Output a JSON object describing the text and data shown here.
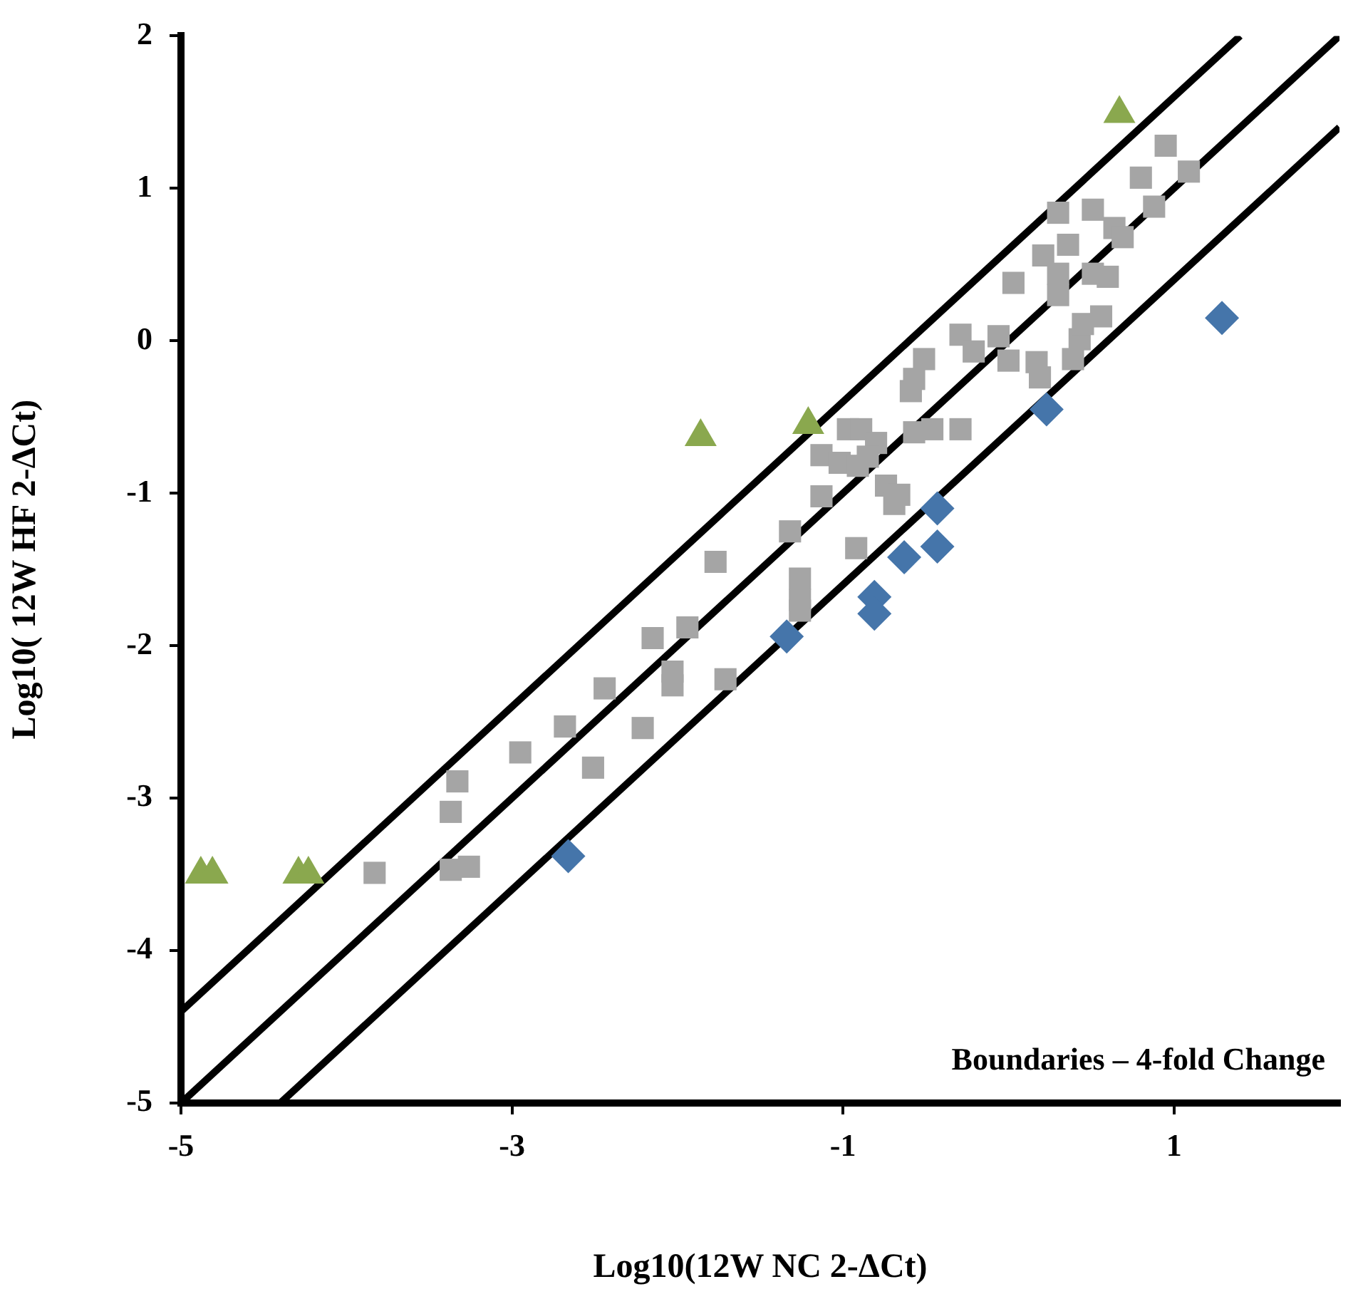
{
  "chart_data": {
    "type": "scatter",
    "xlabel": "Log10(12W NC 2-ΔCt)",
    "ylabel": "Log10( 12W HF 2-ΔCt)",
    "xlim": [
      -5,
      2
    ],
    "xticks": [
      -5,
      -3,
      -1,
      1
    ],
    "ylim": [
      -5,
      2
    ],
    "yticks": [
      -5,
      -4,
      -3,
      -2,
      -1,
      0,
      1,
      2
    ],
    "grid": false,
    "legend": false,
    "annotations": [
      "Boundaries – 4-fold Change"
    ],
    "series": [
      {
        "type": "line",
        "color": "#000000",
        "marker": "none",
        "line_style": "solid",
        "x": [
          -5,
          1.4
        ],
        "values": [
          -4.4,
          2
        ]
      },
      {
        "type": "line",
        "color": "#000000",
        "marker": "none",
        "line_style": "solid",
        "x": [
          -5,
          2
        ],
        "values": [
          -5,
          2
        ]
      },
      {
        "type": "line",
        "color": "#000000",
        "marker": "none",
        "line_style": "solid",
        "x": [
          -4.4,
          2
        ],
        "values": [
          -5,
          1.4
        ]
      },
      {
        "type": "scatter",
        "color": "#a5a5a5",
        "marker": "square",
        "x": [
          -3.83,
          -3.37,
          -3.26,
          -3.37,
          -3.33,
          -2.95,
          -2.68,
          -2.51,
          -2.44,
          -2.21,
          -2.15,
          -2.03,
          -2.03,
          -1.94,
          -1.77,
          -1.71,
          -1.32,
          -1.26,
          -1.26,
          -1.26,
          -1.13,
          -1.13,
          -1.02,
          -0.97,
          -0.91,
          -0.92,
          -0.89,
          -0.8,
          -0.85,
          -0.74,
          -0.69,
          -0.66,
          -0.57,
          -0.59,
          -0.57,
          -0.51,
          -0.46,
          -0.29,
          -0.29,
          -0.21,
          -0.06,
          0.0,
          0.03,
          0.17,
          0.19,
          0.21,
          0.3,
          0.3,
          0.3,
          0.36,
          0.39,
          0.43,
          0.45,
          0.51,
          0.51,
          0.56,
          0.6,
          0.64,
          0.69,
          0.8,
          0.88,
          0.95,
          1.09
        ],
        "values": [
          -3.49,
          -3.47,
          -3.45,
          -3.09,
          -2.89,
          -2.7,
          -2.53,
          -2.8,
          -2.28,
          -2.54,
          -1.95,
          -2.26,
          -2.17,
          -1.88,
          -1.45,
          -2.22,
          -1.25,
          -1.56,
          -1.7,
          -1.77,
          -1.02,
          -0.75,
          -0.8,
          -0.58,
          -0.82,
          -1.36,
          -0.58,
          -0.67,
          -0.76,
          -0.95,
          -1.07,
          -1.01,
          -0.6,
          -0.33,
          -0.25,
          -0.12,
          -0.58,
          -0.58,
          0.04,
          -0.07,
          0.03,
          -0.13,
          0.38,
          -0.14,
          -0.24,
          0.56,
          0.84,
          0.44,
          0.3,
          0.63,
          -0.12,
          0.01,
          0.11,
          0.44,
          0.86,
          0.16,
          0.42,
          0.74,
          0.68,
          1.07,
          0.88,
          1.28,
          1.11
        ]
      },
      {
        "type": "scatter",
        "color": "#4575aa",
        "marker": "diamond",
        "x": [
          -2.66,
          -1.34,
          -0.81,
          -0.81,
          -0.63,
          -0.43,
          -0.43,
          0.23,
          1.29
        ],
        "values": [
          -3.38,
          -1.94,
          -1.68,
          -1.79,
          -1.42,
          -1.1,
          -1.35,
          -0.45,
          0.15
        ]
      },
      {
        "type": "scatter",
        "color": "#8aa84e",
        "marker": "triangle",
        "x": [
          -4.88,
          -4.81,
          -4.29,
          -4.23,
          -1.86,
          -1.21,
          0.67
        ],
        "values": [
          -3.5,
          -3.5,
          -3.5,
          -3.5,
          -0.63,
          -0.55,
          1.49
        ]
      }
    ]
  }
}
